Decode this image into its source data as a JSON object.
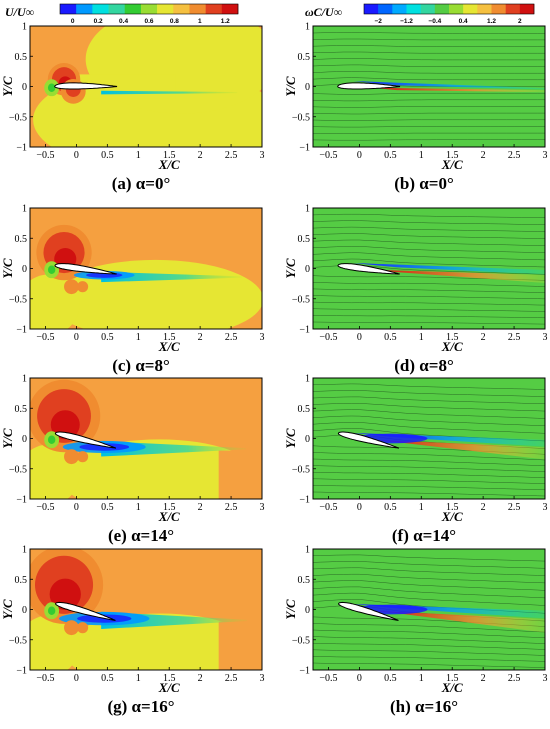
{
  "colorbar_u": {
    "title": "U/U∞",
    "ticks": [
      "0",
      "0.2",
      "0.4",
      "0.6",
      "0.8",
      "1",
      "1.2"
    ],
    "colors": [
      "#1a1aff",
      "#0099ff",
      "#00e0e0",
      "#33d6a0",
      "#33cc33",
      "#99dd33",
      "#e6e633",
      "#f5c040",
      "#f08c30",
      "#e04020",
      "#d01010"
    ]
  },
  "colorbar_w": {
    "title": "ωC/U∞",
    "ticks": [
      "−2",
      "−1.2",
      "−0.4",
      "0.4",
      "1.2",
      "2"
    ],
    "colors": [
      "#1a1aff",
      "#0066ff",
      "#00aaff",
      "#00e0e0",
      "#33d6a0",
      "#55cc44",
      "#99dd33",
      "#e6e633",
      "#f5c040",
      "#f08c30",
      "#e04020",
      "#d01010"
    ]
  },
  "axes": {
    "xlabel": "X/C",
    "ylabel": "Y/C",
    "xticks": [
      "−0.5",
      "0",
      "0.5",
      "1",
      "1.5",
      "2",
      "2.5",
      "3"
    ],
    "yticks": [
      "1",
      "0.5",
      "0",
      "−0.5",
      "−1"
    ]
  },
  "panels": [
    {
      "id": "a",
      "field": "velocity",
      "alpha": 0,
      "caption": "(a) α=0°"
    },
    {
      "id": "b",
      "field": "vorticity",
      "alpha": 0,
      "caption": "(b) α=0°"
    },
    {
      "id": "c",
      "field": "velocity",
      "alpha": 8,
      "caption": "(c) α=8°"
    },
    {
      "id": "d",
      "field": "vorticity",
      "alpha": 8,
      "caption": "(d) α=8°"
    },
    {
      "id": "e",
      "field": "velocity",
      "alpha": 14,
      "caption": "(e) α=14°"
    },
    {
      "id": "f",
      "field": "vorticity",
      "alpha": 14,
      "caption": "(f) α=14°"
    },
    {
      "id": "g",
      "field": "velocity",
      "alpha": 16,
      "caption": "(g) α=16°"
    },
    {
      "id": "h",
      "field": "vorticity",
      "alpha": 16,
      "caption": "(h) α=16°"
    }
  ]
}
